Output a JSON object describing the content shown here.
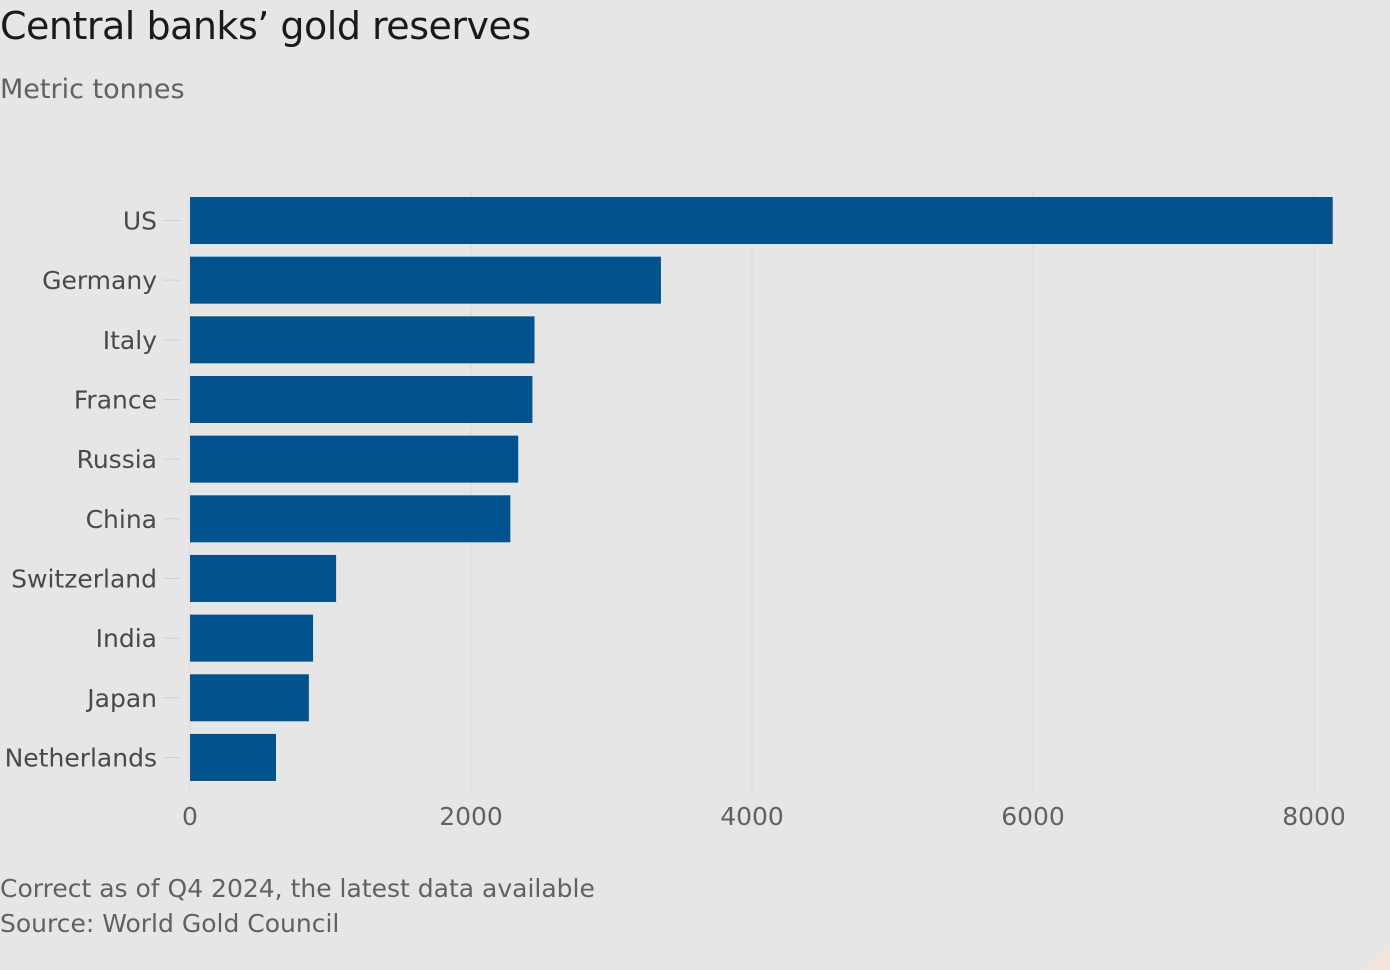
{
  "chart_data": {
    "type": "bar",
    "orientation": "horizontal",
    "title": "Central banks’ gold reserves",
    "subtitle": "Metric tonnes",
    "categories": [
      "US",
      "Germany",
      "Italy",
      "France",
      "Russia",
      "China",
      "Switzerland",
      "India",
      "Japan",
      "Netherlands"
    ],
    "values": [
      8133,
      3352,
      2452,
      2437,
      2336,
      2280,
      1040,
      876,
      846,
      612
    ],
    "xlim": [
      0,
      8200
    ],
    "xticks": [
      0,
      2000,
      4000,
      6000,
      8000
    ],
    "xtick_labels": [
      "0",
      "2000",
      "4000",
      "6000",
      "8000"
    ],
    "grid": "vertical",
    "bar_color": "#00538c",
    "note": "Correct as of Q4 2024, the latest data available",
    "source": "Source: World Gold Council"
  }
}
